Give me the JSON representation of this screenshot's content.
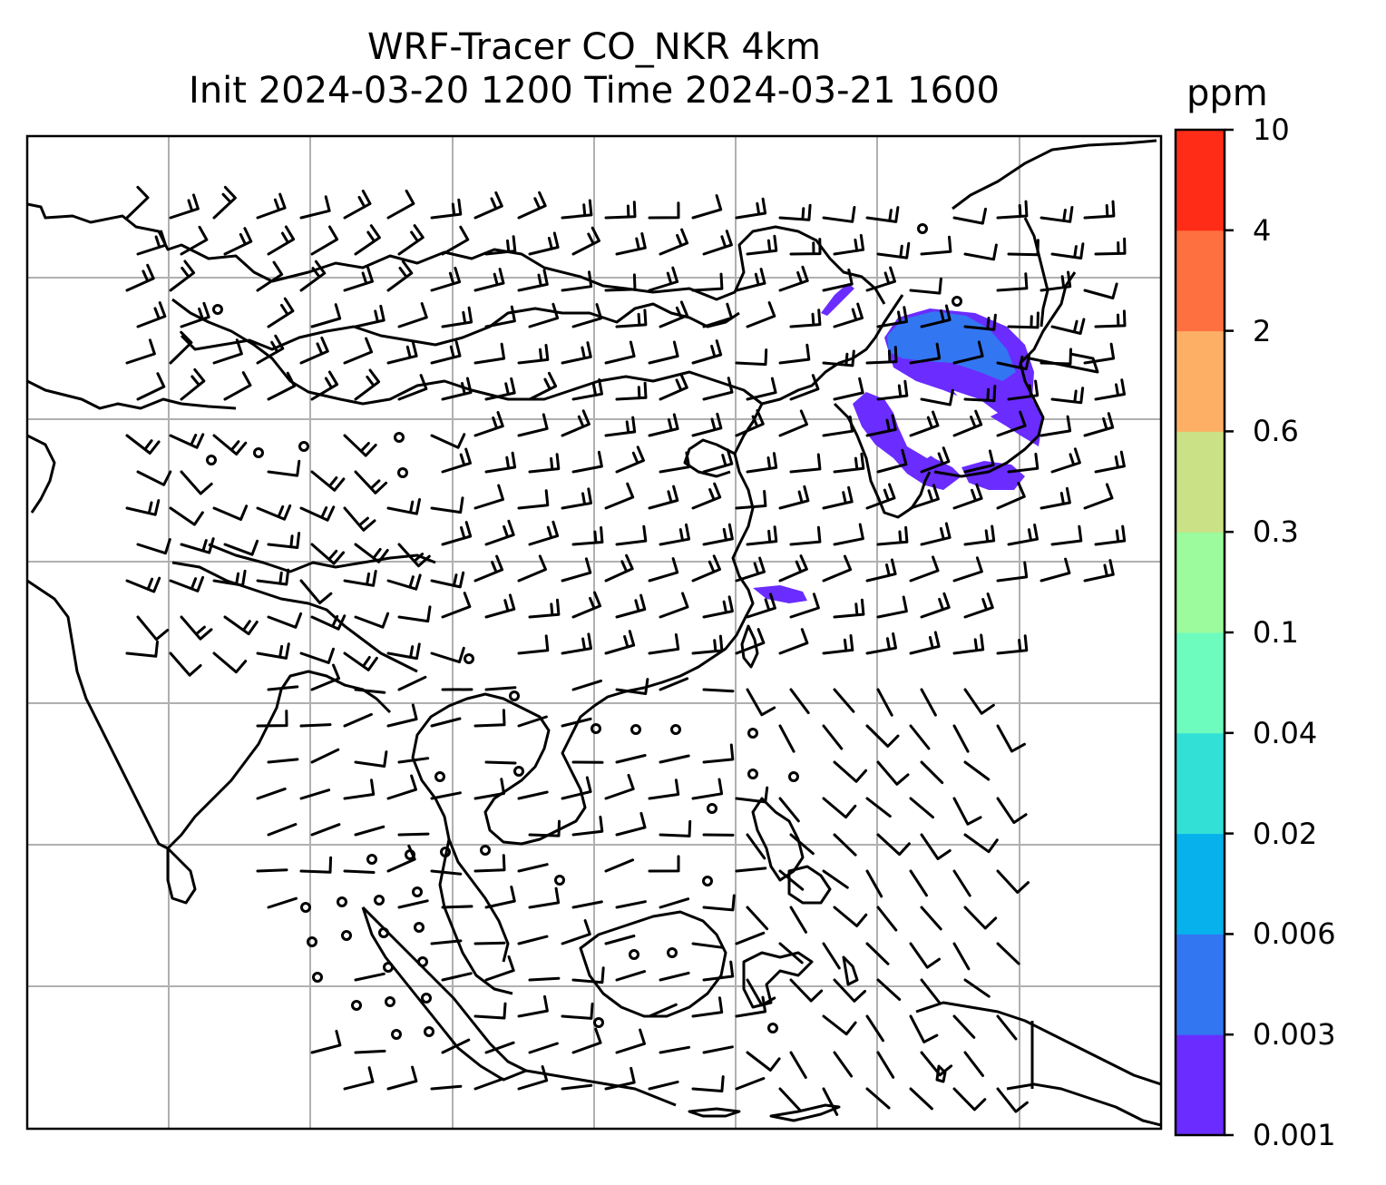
{
  "title": {
    "line1": "WRF-Tracer CO_NKR 4km",
    "line2": "Init 2024-03-20 1200 Time 2024-03-21 1600"
  },
  "colorbar": {
    "unit": "ppm",
    "levels": [
      "0.001",
      "0.003",
      "0.006",
      "0.02",
      "0.04",
      "0.1",
      "0.3",
      "0.6",
      "2",
      "4",
      "10"
    ],
    "colors": [
      "#6a2cff",
      "#3276f2",
      "#06b1ec",
      "#32e0d6",
      "#6efcbe",
      "#9cfb9c",
      "#cbe186",
      "#fdb065",
      "#ff7041",
      "#ff2d17"
    ]
  },
  "map": {
    "coastline_color": "#000000",
    "gridline_color": "#b0b0b0",
    "wind_barb_color": "#000000",
    "plume_color_low": "#6a2cff",
    "plume_color_mid": "#3276f2"
  }
}
